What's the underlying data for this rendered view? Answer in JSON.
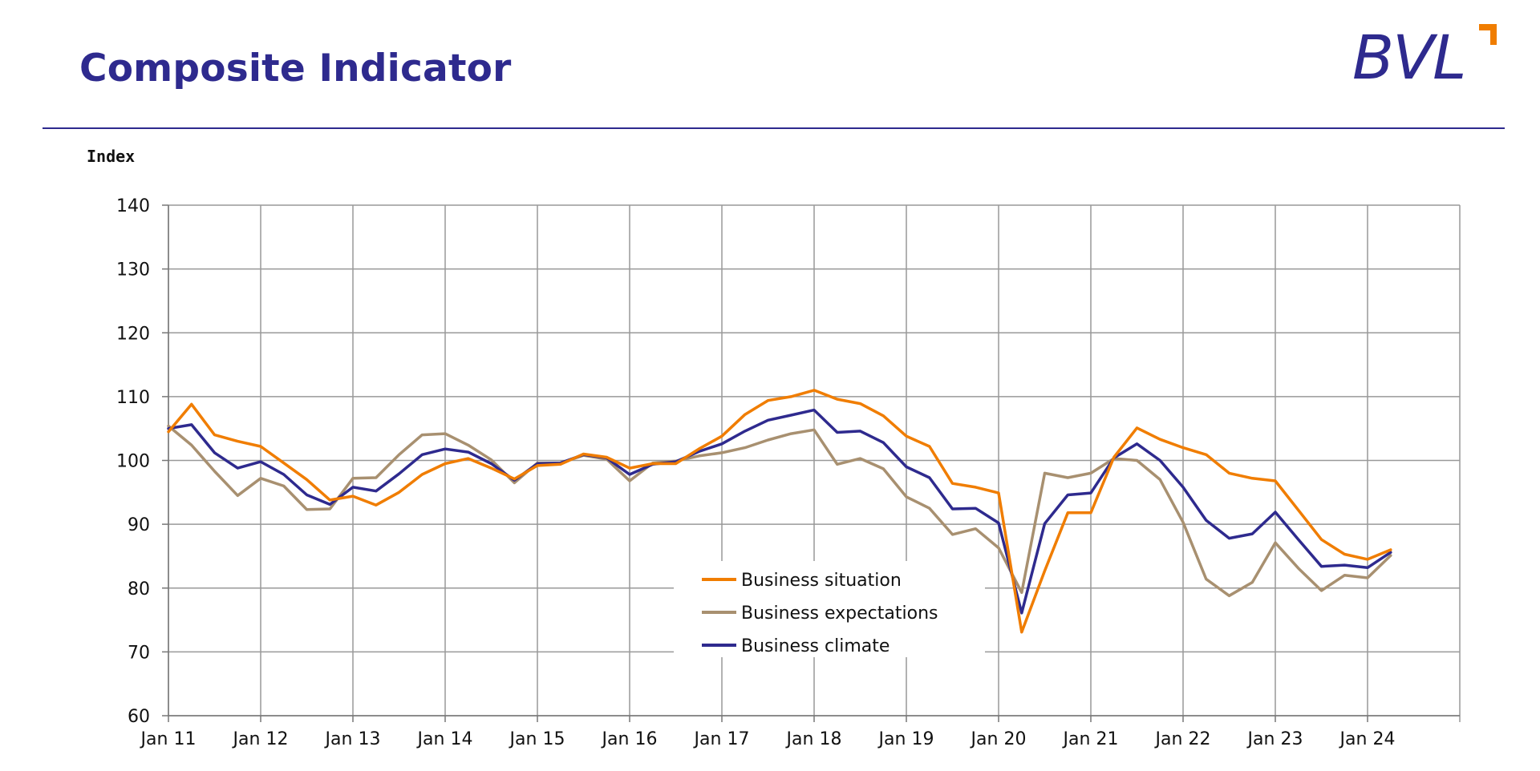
{
  "page": {
    "title": "Composite Indicator",
    "logo_text": "BVL",
    "colors": {
      "brand": "#2e2a8e",
      "accent": "#f07d00"
    }
  },
  "chart_data": {
    "type": "line",
    "title": "Composite Indicator",
    "ylabel": "Index",
    "xlabel": "",
    "ylim": [
      60,
      140
    ],
    "yticks": [
      60,
      70,
      80,
      90,
      100,
      110,
      120,
      130,
      140
    ],
    "x_start": "Jan 11",
    "x_end": "Apr 24",
    "x_step": "quarter",
    "xtick_labels": [
      "Jan 11",
      "Jan 12",
      "Jan 13",
      "Jan 14",
      "Jan 15",
      "Jan 16",
      "Jan 17",
      "Jan 18",
      "Jan 19",
      "Jan 20",
      "Jan 21",
      "Jan 22",
      "Jan 23",
      "Jan 24"
    ],
    "grid": true,
    "legend_position": "bottom-center",
    "series": [
      {
        "name": "Business situation",
        "color": "#f07d00",
        "values": [
          104.5,
          108.8,
          104.0,
          103.0,
          102.2,
          99.6,
          97.0,
          93.8,
          94.4,
          93.0,
          95.0,
          97.8,
          99.5,
          100.3,
          98.8,
          97.1,
          99.2,
          99.4,
          101.0,
          100.5,
          98.8,
          99.5,
          99.5,
          101.8,
          103.8,
          107.2,
          109.4,
          110.0,
          111.0,
          109.6,
          108.9,
          107.0,
          103.8,
          102.2,
          96.4,
          95.8,
          94.9,
          73.1,
          82.7,
          91.8,
          91.8,
          100.5,
          105.1,
          103.3,
          102.0,
          100.9,
          98.0,
          97.2,
          96.8,
          92.2,
          87.6,
          85.3,
          84.5,
          86.0
        ]
      },
      {
        "name": "Business expectations",
        "color": "#a89070",
        "values": [
          105.4,
          102.4,
          98.3,
          94.5,
          97.2,
          96.0,
          92.3,
          92.4,
          97.2,
          97.3,
          100.9,
          104.0,
          104.2,
          102.4,
          100.1,
          96.5,
          99.6,
          99.6,
          100.8,
          100.2,
          96.8,
          99.6,
          99.9,
          100.7,
          101.2,
          102.0,
          103.2,
          104.2,
          104.8,
          99.4,
          100.3,
          98.7,
          94.3,
          92.5,
          88.4,
          89.3,
          86.3,
          79.3,
          98.0,
          97.3,
          98.0,
          100.3,
          100.0,
          97.0,
          90.3,
          81.4,
          78.8,
          80.9,
          87.1,
          83.1,
          79.6,
          82.0,
          81.6,
          85.1
        ]
      },
      {
        "name": "Business climate",
        "color": "#2e2a8e",
        "values": [
          105.0,
          105.6,
          101.2,
          98.8,
          99.8,
          97.8,
          94.6,
          93.1,
          95.8,
          95.2,
          97.9,
          100.9,
          101.8,
          101.3,
          99.5,
          96.9,
          99.5,
          99.6,
          100.9,
          100.4,
          97.8,
          99.4,
          99.8,
          101.4,
          102.6,
          104.6,
          106.3,
          107.1,
          107.9,
          104.4,
          104.6,
          102.8,
          99.0,
          97.3,
          92.4,
          92.5,
          90.2,
          76.1,
          90.1,
          94.6,
          94.9,
          100.4,
          102.6,
          100.0,
          95.8,
          90.6,
          87.8,
          88.5,
          91.9,
          87.6,
          83.4,
          83.6,
          83.2,
          85.6
        ]
      }
    ]
  }
}
